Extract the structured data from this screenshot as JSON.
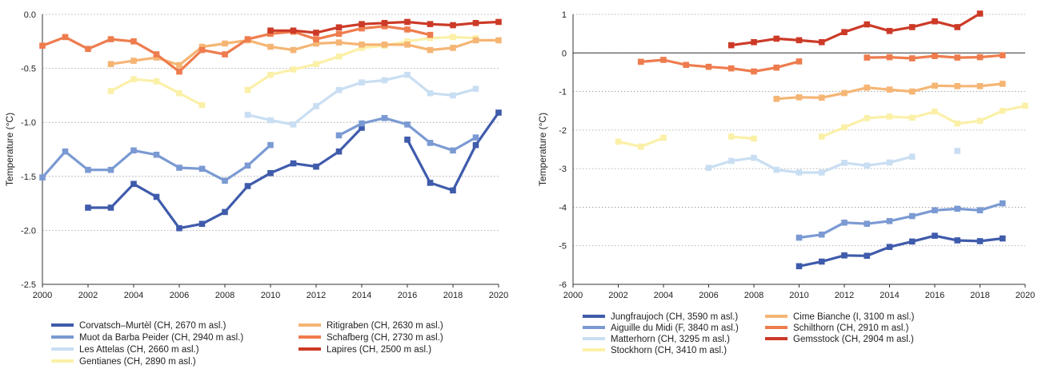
{
  "chart_data": [
    {
      "type": "line",
      "ylabel": "Temperature (°C)",
      "xlim": [
        2000,
        2020
      ],
      "ylim": [
        -2.5,
        0.0
      ],
      "xticks": [
        "2000",
        "2002",
        "2004",
        "2006",
        "2008",
        "2010",
        "2012",
        "2014",
        "2016",
        "2018",
        "2020"
      ],
      "yticks": [
        "0.0",
        "-0.5",
        "-1.0",
        "-1.5",
        "-2.0",
        "-2.5"
      ],
      "grid": "horizontal dotted",
      "legend_position": "bottom",
      "series": [
        {
          "name": "Corvatsch–Murtèl (CH, 2670 m asl.)",
          "color": "#3f5bab",
          "x": [
            2002,
            2003,
            2004,
            2005,
            2006,
            2007,
            2008,
            2009,
            2010,
            2011,
            2012,
            2013,
            2014,
            2016,
            2017,
            2018,
            2019,
            2020
          ],
          "y": [
            -1.79,
            -1.79,
            -1.57,
            -1.69,
            -1.98,
            -1.94,
            -1.83,
            -1.59,
            -1.47,
            -1.38,
            -1.41,
            -1.27,
            -1.05,
            -1.16,
            -1.56,
            -1.63,
            -1.21,
            -0.91
          ],
          "breaks_after": [
            2014
          ]
        },
        {
          "name": "Muot da Barba Peider (CH, 2940 m asl.)",
          "color": "#7b9ad3",
          "x": [
            2000,
            2001,
            2002,
            2003,
            2004,
            2005,
            2006,
            2007,
            2008,
            2009,
            2010,
            2013,
            2014,
            2015,
            2016,
            2017,
            2018,
            2019
          ],
          "y": [
            -1.51,
            -1.27,
            -1.44,
            -1.44,
            -1.26,
            -1.3,
            -1.42,
            -1.43,
            -1.54,
            -1.4,
            -1.21,
            -1.12,
            -1.01,
            -0.96,
            -1.02,
            -1.19,
            -1.26,
            -1.14
          ],
          "breaks_after": [
            2010
          ]
        },
        {
          "name": "Les Attelas (CH, 2660 m asl.)",
          "color": "#c9def2",
          "x": [
            2009,
            2010,
            2011,
            2012,
            2013,
            2014,
            2015,
            2016,
            2017,
            2018,
            2019
          ],
          "y": [
            -0.93,
            -0.98,
            -1.02,
            -0.85,
            -0.7,
            -0.63,
            -0.61,
            -0.56,
            -0.73,
            -0.75,
            -0.69
          ],
          "breaks_after": []
        },
        {
          "name": "Gentianes (CH, 2890 m asl.)",
          "color": "#fbf0a8",
          "x": [
            2003,
            2004,
            2005,
            2006,
            2007,
            2009,
            2010,
            2011,
            2012,
            2013,
            2014,
            2015,
            2016,
            2017,
            2018,
            2019
          ],
          "y": [
            -0.71,
            -0.6,
            -0.62,
            -0.73,
            -0.84,
            -0.7,
            -0.56,
            -0.51,
            -0.46,
            -0.39,
            -0.31,
            -0.29,
            -0.25,
            -0.22,
            -0.21,
            -0.22
          ],
          "breaks_after": [
            2007
          ]
        },
        {
          "name": "Ritigraben (CH, 2630 m asl.)",
          "color": "#f5b574",
          "x": [
            2003,
            2004,
            2005,
            2006,
            2007,
            2008,
            2009,
            2010,
            2011,
            2012,
            2013,
            2014,
            2015,
            2016,
            2017,
            2018,
            2019,
            2020
          ],
          "y": [
            -0.46,
            -0.43,
            -0.4,
            -0.47,
            -0.3,
            -0.27,
            -0.24,
            -0.3,
            -0.33,
            -0.27,
            -0.26,
            -0.28,
            -0.28,
            -0.28,
            -0.33,
            -0.31,
            -0.24,
            -0.24
          ],
          "breaks_after": []
        },
        {
          "name": "Schafberg (CH, 2730 m asl.)",
          "color": "#ee7c4e",
          "x": [
            2000,
            2001,
            2002,
            2003,
            2004,
            2005,
            2006,
            2007,
            2008,
            2009,
            2010,
            2011,
            2012,
            2013,
            2014,
            2015,
            2016,
            2017
          ],
          "y": [
            -0.29,
            -0.21,
            -0.32,
            -0.23,
            -0.25,
            -0.37,
            -0.53,
            -0.33,
            -0.37,
            -0.23,
            -0.18,
            -0.16,
            -0.23,
            -0.18,
            -0.13,
            -0.11,
            -0.14,
            -0.19
          ],
          "breaks_after": []
        },
        {
          "name": "Lapires (CH, 2500 m asl.)",
          "color": "#cc3a27",
          "x": [
            2010,
            2011,
            2012,
            2013,
            2014,
            2015,
            2016,
            2017,
            2018,
            2019,
            2020
          ],
          "y": [
            -0.15,
            -0.15,
            -0.17,
            -0.12,
            -0.09,
            -0.08,
            -0.07,
            -0.09,
            -0.1,
            -0.08,
            -0.07
          ],
          "breaks_after": []
        }
      ]
    },
    {
      "type": "line",
      "ylabel": "Temperature (°C)",
      "xlim": [
        2000,
        2020
      ],
      "ylim": [
        -6,
        1
      ],
      "xticks": [
        "2000",
        "2002",
        "2004",
        "2006",
        "2008",
        "2010",
        "2012",
        "2014",
        "2016",
        "2018",
        "2020"
      ],
      "yticks": [
        "1",
        "0",
        "-1",
        "-2",
        "-3",
        "-4",
        "-5",
        "-6"
      ],
      "grid": "horizontal dotted",
      "zero_line": true,
      "legend_position": "bottom",
      "series": [
        {
          "name": "Jungfraujoch (CH, 3590 m asl.)",
          "color": "#3f5bab",
          "x": [
            2010,
            2011,
            2012,
            2013,
            2014,
            2015,
            2016,
            2017,
            2018,
            2019
          ],
          "y": [
            -5.53,
            -5.41,
            -5.25,
            -5.26,
            -5.03,
            -4.89,
            -4.74,
            -4.86,
            -4.88,
            -4.81
          ],
          "breaks_after": []
        },
        {
          "name": "Aiguille du Midi (F, 3840 m asl.)",
          "color": "#7b9ad3",
          "x": [
            2010,
            2011,
            2012,
            2013,
            2014,
            2015,
            2016,
            2017,
            2018,
            2019
          ],
          "y": [
            -4.79,
            -4.71,
            -4.4,
            -4.43,
            -4.36,
            -4.23,
            -4.08,
            -4.04,
            -4.08,
            -3.9
          ],
          "breaks_after": []
        },
        {
          "name": "Matterhorn (CH, 3295 m asl.)",
          "color": "#c9def2",
          "x": [
            2006,
            2007,
            2008,
            2009,
            2010,
            2011,
            2012,
            2013,
            2014,
            2015,
            2017
          ],
          "y": [
            -2.98,
            -2.8,
            -2.72,
            -3.03,
            -3.1,
            -3.1,
            -2.85,
            -2.92,
            -2.84,
            -2.69,
            -2.54
          ],
          "breaks_after": [
            2015
          ]
        },
        {
          "name": "Stockhorn (CH, 3410 m asl.)",
          "color": "#fbf0a8",
          "x": [
            2002,
            2003,
            2004,
            2007,
            2008,
            2011,
            2012,
            2013,
            2014,
            2015,
            2016,
            2017,
            2018,
            2019,
            2020
          ],
          "y": [
            -2.3,
            -2.43,
            -2.2,
            -2.17,
            -2.22,
            -2.17,
            -1.93,
            -1.69,
            -1.65,
            -1.68,
            -1.52,
            -1.83,
            -1.76,
            -1.5,
            -1.37
          ],
          "breaks_after": [
            2004,
            2008
          ]
        },
        {
          "name": "Cime Bianche (I, 3100 m asl.)",
          "color": "#f5b574",
          "x": [
            2009,
            2010,
            2011,
            2012,
            2013,
            2014,
            2015,
            2016,
            2017,
            2018,
            2019
          ],
          "y": [
            -1.19,
            -1.15,
            -1.16,
            -1.04,
            -0.9,
            -0.95,
            -1.0,
            -0.85,
            -0.86,
            -0.86,
            -0.8
          ],
          "breaks_after": []
        },
        {
          "name": "Schilthorn (CH, 2910 m asl.)",
          "color": "#ee7c4e",
          "x": [
            2003,
            2004,
            2005,
            2006,
            2007,
            2008,
            2009,
            2010,
            2013,
            2014,
            2015,
            2016,
            2017,
            2018,
            2019
          ],
          "y": [
            -0.23,
            -0.18,
            -0.31,
            -0.36,
            -0.4,
            -0.48,
            -0.38,
            -0.22,
            -0.12,
            -0.11,
            -0.14,
            -0.08,
            -0.12,
            -0.11,
            -0.06
          ],
          "breaks_after": [
            2010
          ]
        },
        {
          "name": "Gemsstock (CH, 2904 m asl.)",
          "color": "#cc3a27",
          "x": [
            2007,
            2008,
            2009,
            2010,
            2011,
            2012,
            2013,
            2014,
            2015,
            2016,
            2017,
            2018
          ],
          "y": [
            0.2,
            0.28,
            0.37,
            0.33,
            0.28,
            0.54,
            0.74,
            0.57,
            0.67,
            0.82,
            0.67,
            1.02
          ],
          "breaks_after": []
        }
      ]
    }
  ]
}
